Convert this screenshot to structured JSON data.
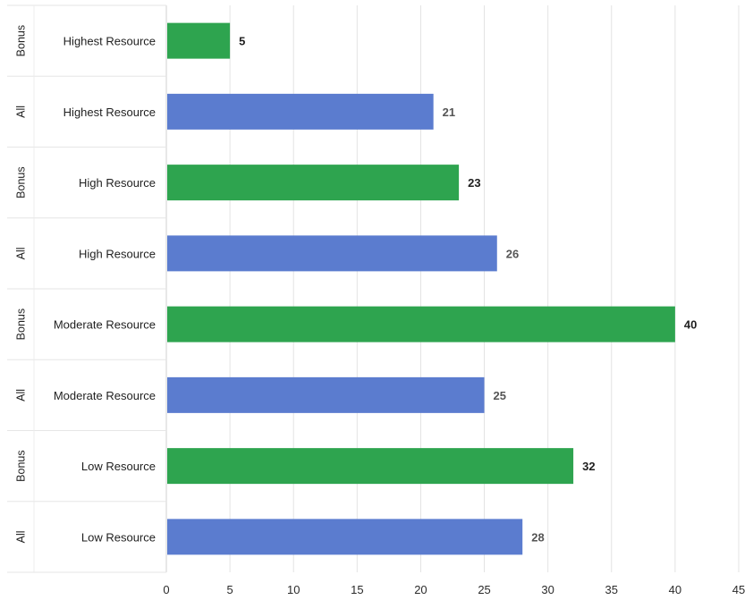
{
  "chart_data": {
    "type": "bar",
    "orientation": "horizontal",
    "title": "",
    "xlabel": "",
    "ylabel": "",
    "xlim": [
      0,
      45
    ],
    "xticks": [
      0,
      5,
      10,
      15,
      20,
      25,
      30,
      35,
      40,
      45
    ],
    "grid": "vertical",
    "legend": "none",
    "bars": [
      {
        "group": "Bonus",
        "category": "Highest Resource",
        "value": 5,
        "color": "#2ea44f"
      },
      {
        "group": "All",
        "category": "Highest Resource",
        "value": 21,
        "color": "#5b7ccf"
      },
      {
        "group": "Bonus",
        "category": "High Resource",
        "value": 23,
        "color": "#2ea44f"
      },
      {
        "group": "All",
        "category": "High Resource",
        "value": 26,
        "color": "#5b7ccf"
      },
      {
        "group": "Bonus",
        "category": "Moderate Resource",
        "value": 40,
        "color": "#2ea44f"
      },
      {
        "group": "All",
        "category": "Moderate Resource",
        "value": 25,
        "color": "#5b7ccf"
      },
      {
        "group": "Bonus",
        "category": "Low Resource",
        "value": 32,
        "color": "#2ea44f"
      },
      {
        "group": "All",
        "category": "Low Resource",
        "value": 28,
        "color": "#5b7ccf"
      }
    ]
  }
}
